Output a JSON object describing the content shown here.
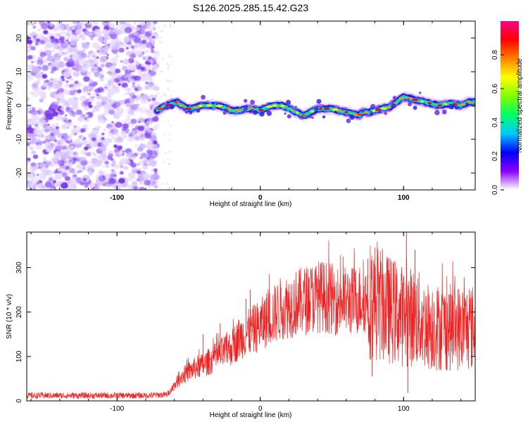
{
  "title": "S126.2025.285.15.42.G23",
  "chart_data": [
    {
      "type": "heatmap",
      "title": "S126.2025.285.15.42.G23",
      "xlabel": "Height of straight line (km)",
      "ylabel": "Frequency (Hz)",
      "xlim": [
        -163,
        150
      ],
      "ylim": [
        -25,
        25
      ],
      "xticks": [
        -100,
        0,
        100
      ],
      "yticks": [
        -20,
        -10,
        0,
        10,
        20
      ],
      "noise_region_x": [
        -163,
        -72
      ],
      "ridge": {
        "x": [
          -72,
          -68,
          -62,
          -58,
          -55,
          -50,
          -45,
          -40,
          -35,
          -30,
          -25,
          -20,
          -15,
          -10,
          -5,
          0,
          5,
          10,
          15,
          20,
          25,
          30,
          35,
          40,
          45,
          50,
          55,
          60,
          65,
          68,
          72,
          76,
          80,
          85,
          90,
          95,
          100,
          105,
          110,
          115,
          120,
          125,
          130,
          135,
          140,
          145,
          150
        ],
        "y": [
          -1.5,
          -0.5,
          0.5,
          1,
          0,
          -1,
          -0.5,
          0,
          0,
          0,
          -0.5,
          -1.5,
          -1.5,
          -1,
          -1,
          -1.5,
          -0.5,
          0,
          0,
          -1,
          -2,
          -3,
          -2,
          -1,
          -1,
          -1,
          -1.5,
          -2,
          -2.5,
          -3,
          -2,
          -2,
          -1.5,
          -1,
          -0.5,
          1,
          2.5,
          2,
          1.5,
          1,
          0.5,
          0,
          0.5,
          0.5,
          0,
          1,
          1
        ]
      },
      "colorbar": {
        "label": "Normalized spectral amplitude",
        "range": [
          0,
          1
        ],
        "ticks": [
          "0.0",
          "0.2",
          "0.4",
          "0.6",
          "0.8"
        ],
        "colors": [
          "#ffffff",
          "#8800ff",
          "#0000ff",
          "#00c8ff",
          "#00ff66",
          "#80ff00",
          "#ffff00",
          "#ff8000",
          "#ff0000",
          "#ff0088"
        ]
      }
    },
    {
      "type": "line",
      "xlabel": "Height of straight line (km)",
      "ylabel": "SNR (10 * v/v)",
      "xlim": [
        -163,
        150
      ],
      "ylim": [
        0,
        380
      ],
      "xticks": [
        -100,
        0,
        100
      ],
      "yticks": [
        0,
        100,
        200,
        300
      ],
      "color": "#ee2222",
      "series": [
        {
          "name": "SNR",
          "x": [
            -163,
            -140,
            -120,
            -100,
            -80,
            -65,
            -60,
            -55,
            -50,
            -45,
            -40,
            -35,
            -30,
            -25,
            -20,
            -15,
            -10,
            -5,
            0,
            5,
            10,
            15,
            20,
            25,
            30,
            35,
            40,
            45,
            50,
            55,
            60,
            65,
            70,
            75,
            80,
            85,
            90,
            95,
            100,
            105,
            110,
            115,
            120,
            125,
            130,
            135,
            140,
            145,
            150
          ],
          "y": [
            12,
            12,
            12,
            12,
            12,
            14,
            35,
            55,
            65,
            75,
            80,
            90,
            100,
            110,
            120,
            140,
            150,
            160,
            170,
            185,
            195,
            210,
            215,
            220,
            225,
            230,
            235,
            235,
            230,
            225,
            225,
            225,
            230,
            230,
            225,
            215,
            205,
            200,
            190,
            190,
            185,
            170,
            170,
            165,
            165,
            165,
            165,
            165,
            165
          ]
        }
      ],
      "spikes": [
        {
          "x": -57,
          "y": 65
        },
        {
          "x": -40,
          "y": 150
        },
        {
          "x": -28,
          "y": 175
        },
        {
          "x": -10,
          "y": 230
        },
        {
          "x": -7,
          "y": 250
        },
        {
          "x": 20,
          "y": 245
        },
        {
          "x": 75,
          "y": 320
        },
        {
          "x": 85,
          "y": 285
        },
        {
          "x": 102,
          "y": 380
        },
        {
          "x": 108,
          "y": 340
        },
        {
          "x": 78,
          "y": 55
        },
        {
          "x": 103,
          "y": 18
        }
      ]
    }
  ]
}
